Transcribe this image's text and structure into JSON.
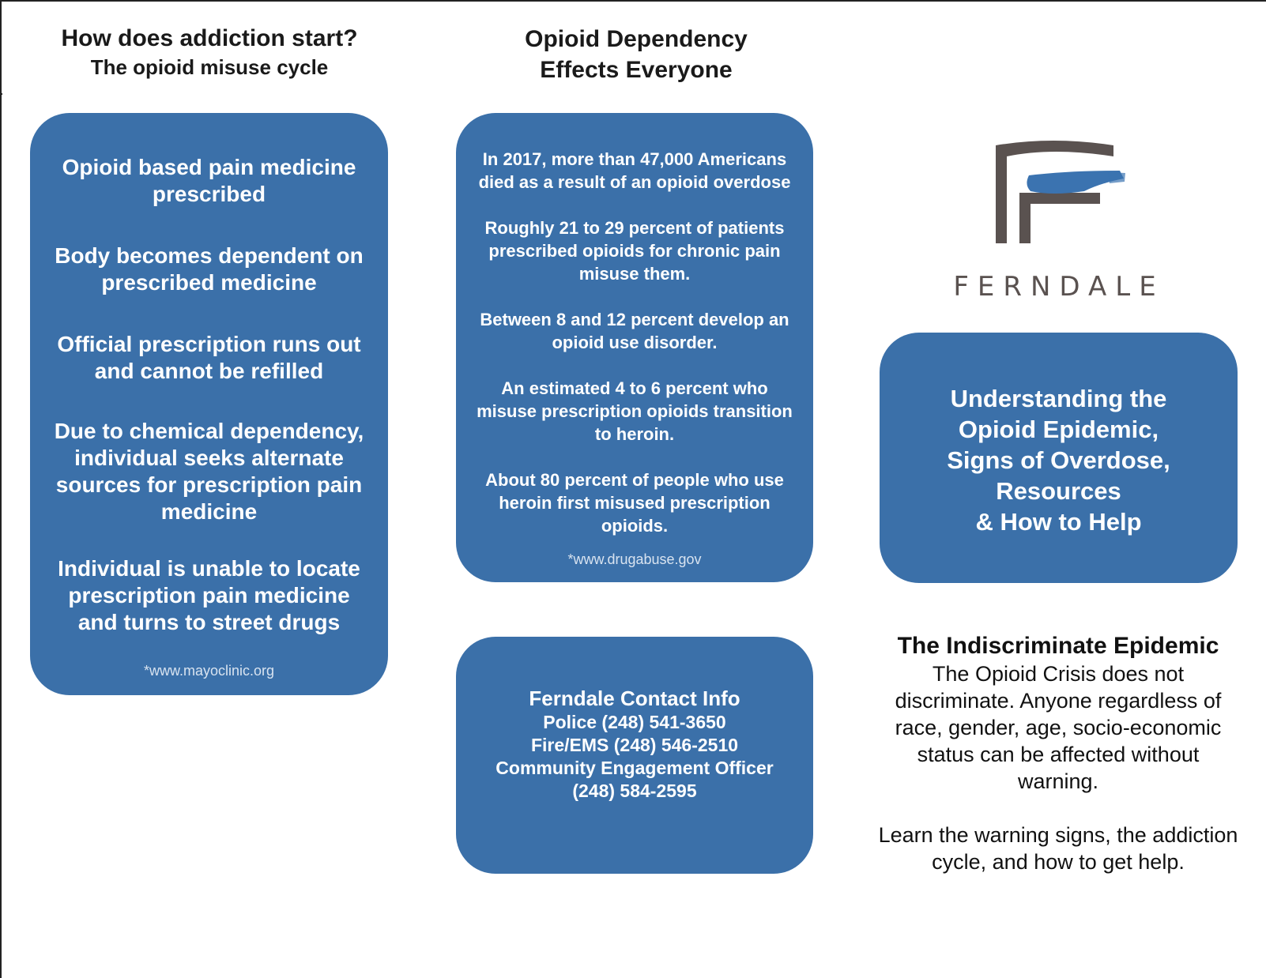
{
  "left_column": {
    "heading": "How does addiction start?",
    "subheading": "The opioid misuse cycle",
    "steps": [
      "Opioid based pain medicine prescribed",
      "Body becomes dependent on prescribed medicine",
      "Official prescription runs out and cannot be refilled",
      "Due to chemical dependency, individual seeks alternate sources for prescription pain medicine",
      "Individual is unable to locate prescription pain medicine and turns to street drugs"
    ],
    "source": "*www.mayoclinic.org"
  },
  "middle_column": {
    "heading_line1": "Opioid Dependency",
    "heading_line2": "Effects Everyone",
    "stats": [
      "In 2017, more than 47,000 Americans died as a result of an opioid overdose",
      "Roughly 21 to 29 percent of patients prescribed opioids for chronic pain misuse them.",
      "Between 8 and 12 percent develop an opioid use disorder.",
      "An estimated 4 to 6 percent who misuse prescription opioids transition to heroin.",
      "About 80 percent of people who use heroin first misused prescription opioids."
    ],
    "source": "*www.drugabuse.gov",
    "contact": {
      "title": "Ferndale Contact Info",
      "police": "Police (248) 541-3650",
      "fire": "Fire/EMS (248) 546-2510",
      "officer": "Community Engagement Officer",
      "officer_phone": "(248) 584-2595"
    }
  },
  "right_column": {
    "logo_text": "FERNDALE",
    "title_lines": [
      "Understanding the",
      "Opioid Epidemic,",
      "Signs of Overdose,",
      "Resources",
      "& How to Help"
    ],
    "epidemic_title": "The Indiscriminate Epidemic",
    "epidemic_body": "The Opioid Crisis does not discriminate. Anyone regardless of race, gender, age, socio-economic status can be affected without warning.",
    "epidemic_body2": "Learn the warning signs, the addiction cycle, and how to get help."
  },
  "colors": {
    "panel_blue": "#3b70a9",
    "logo_gray": "#5a5250",
    "logo_blue": "#3b73b0"
  }
}
